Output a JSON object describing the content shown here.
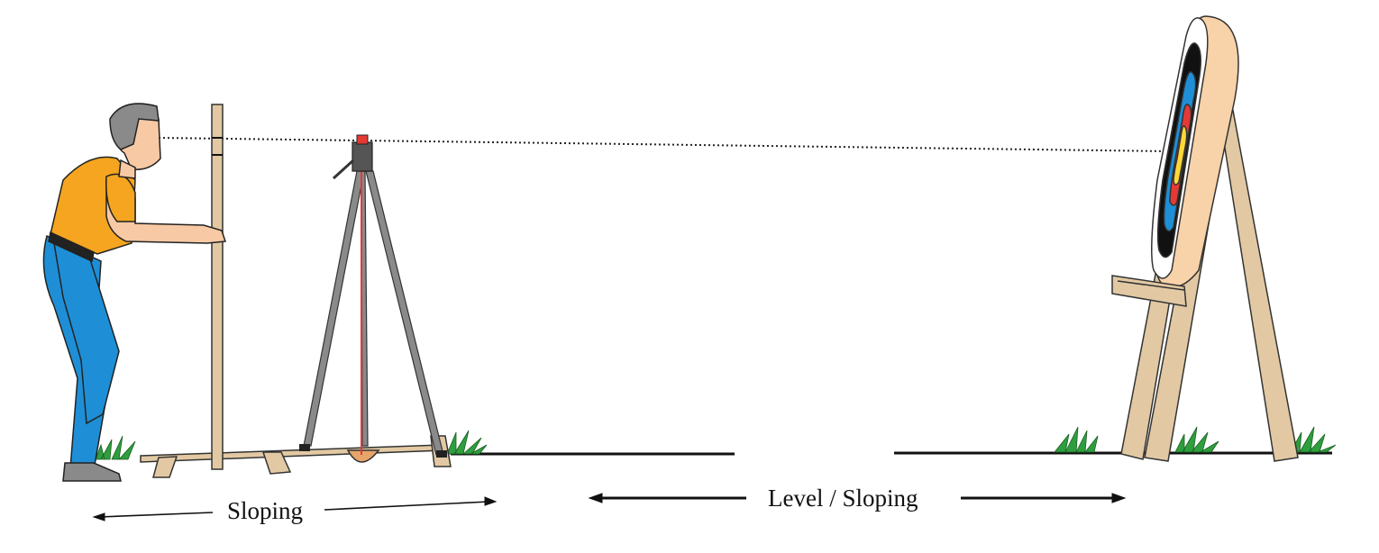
{
  "labels": {
    "left_range": "Sloping",
    "right_range": "Level / Sloping"
  },
  "colors": {
    "shirt": "#F5A51F",
    "trousers": "#1E8FD6",
    "wood": "#E2C9A3",
    "target_face_blue": "#1E8FD6",
    "target_face_red": "#E53935",
    "target_face_gold": "#FDD835",
    "laser_line": "#E53935",
    "grass": "#2E9E3E"
  },
  "icons": [
    "archer-figure",
    "sighting-pole",
    "laser-tripod",
    "archery-target-butt",
    "grass-tuft"
  ]
}
